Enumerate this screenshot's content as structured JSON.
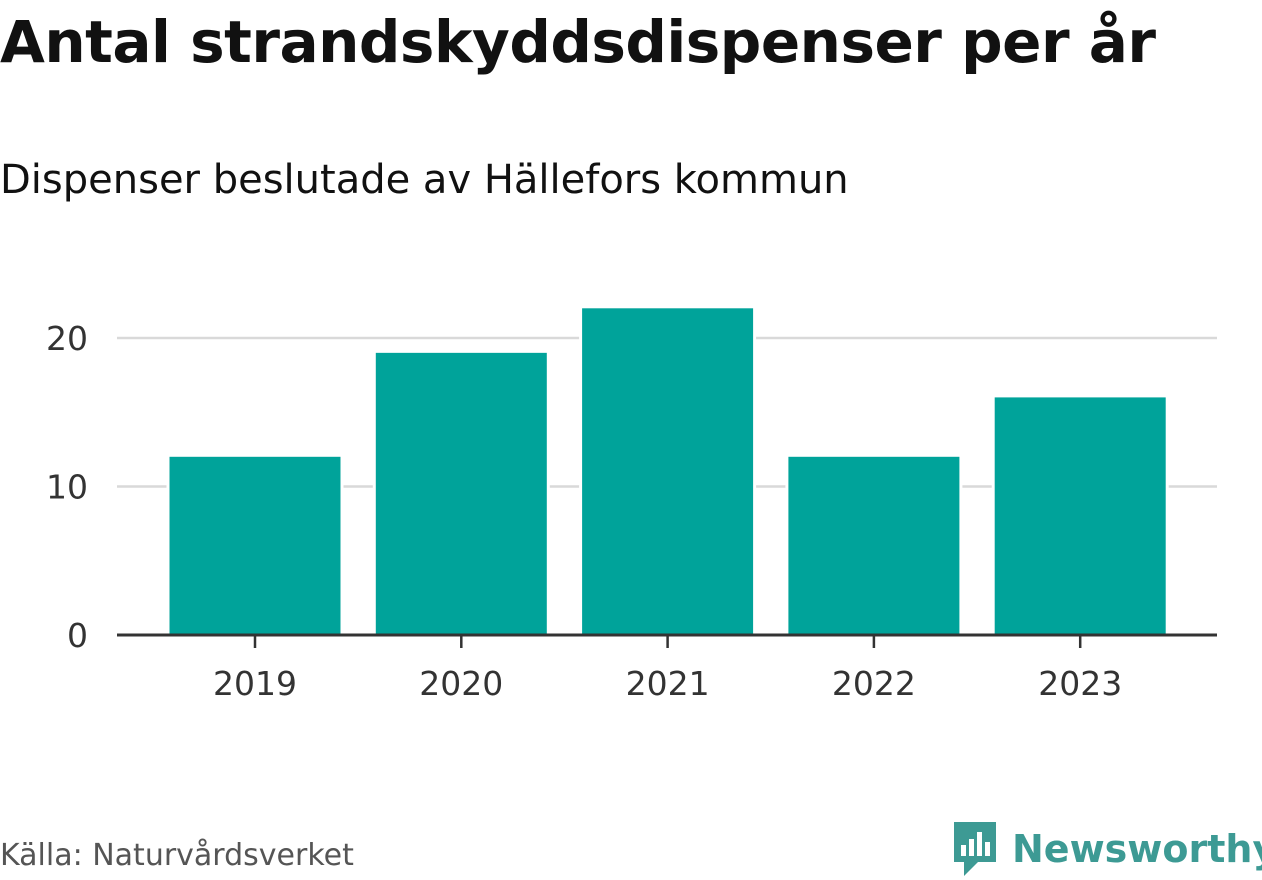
{
  "title": "Antal strandskyddsdispenser per år",
  "subtitle": "Dispenser beslutade av Hällefors kommun",
  "source": "Källa: Naturvårdsverket",
  "brand": {
    "name": "Newsworthy",
    "icon": "newsworthy-logo-icon",
    "color": "#3d9a94"
  },
  "chart_data": {
    "type": "bar",
    "categories": [
      "2019",
      "2020",
      "2021",
      "2022",
      "2023"
    ],
    "values": [
      12,
      19,
      22,
      12,
      16
    ],
    "ylim": [
      0,
      22
    ],
    "yticks": [
      0,
      10,
      20
    ],
    "grid": true,
    "bar_color": "#00a39a",
    "title": "Antal strandskyddsdispenser per år",
    "subtitle": "Dispenser beslutade av Hällefors kommun"
  }
}
